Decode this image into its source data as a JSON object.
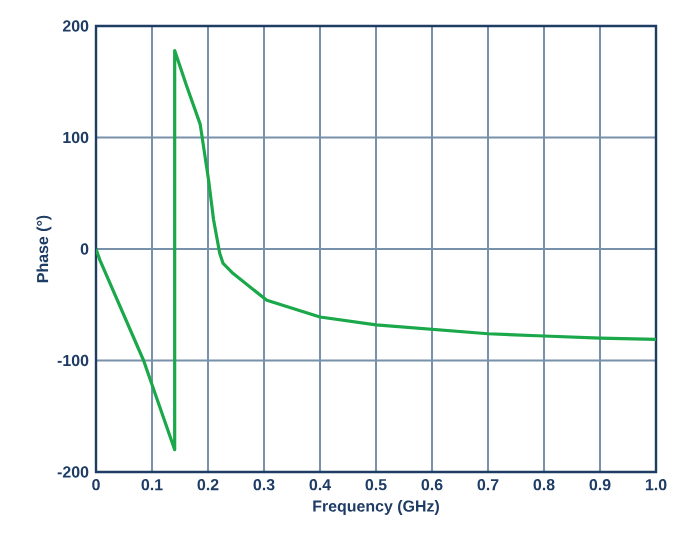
{
  "chart_data": {
    "type": "line",
    "xlabel": "Frequency (GHz)",
    "ylabel": "Phase (°)",
    "series": [
      {
        "color": "#1aa84a",
        "x": [
          0,
          0.007,
          0.085,
          0.1405,
          0.1405,
          0.162,
          0.186,
          0.201,
          0.21,
          0.221,
          0.227,
          0.245,
          0.305,
          0.4,
          0.5,
          0.6,
          0.7,
          0.8,
          0.9,
          1.0
        ],
        "values": [
          0,
          -10,
          -100,
          -180,
          178,
          146,
          112,
          62,
          26,
          -4,
          -13,
          -22,
          -46,
          -61,
          -68,
          -72,
          -76,
          -78,
          -80,
          -81
        ]
      }
    ],
    "xlim": [
      0,
      1.0
    ],
    "ylim": [
      -200,
      200
    ],
    "xticks": [
      0,
      0.1,
      0.2,
      0.3,
      0.4,
      0.5,
      0.6,
      0.7,
      0.8,
      0.9,
      {
        "value": 1.0,
        "label": "1.0"
      }
    ],
    "yticks": [
      -200,
      -100,
      0,
      100,
      200
    ],
    "grid": true,
    "marker": "none",
    "line_style": "solid"
  }
}
